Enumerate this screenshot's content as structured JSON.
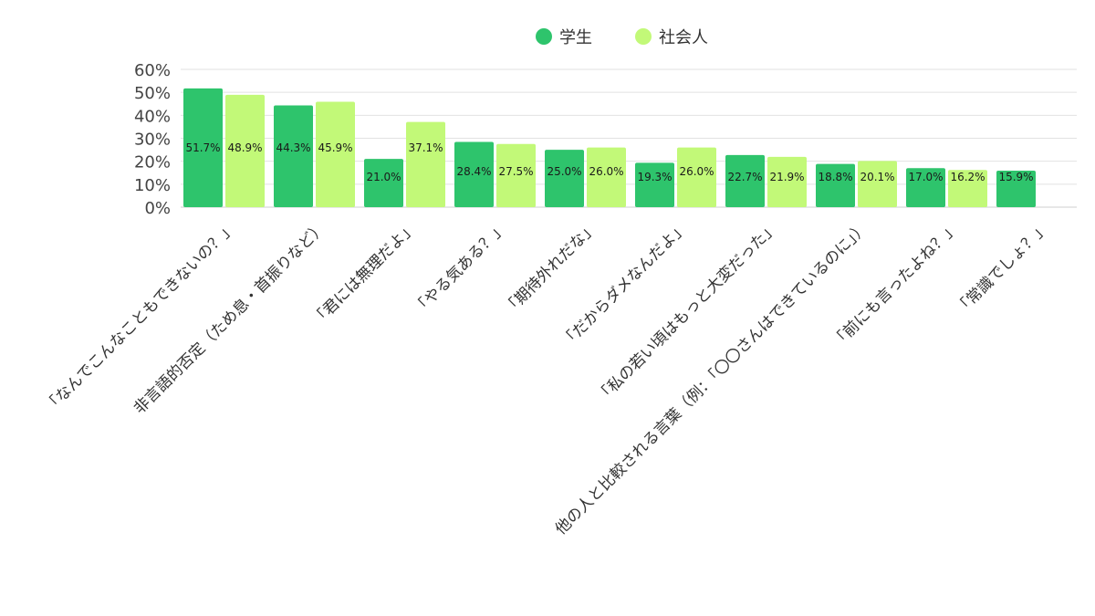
{
  "chart_data": {
    "type": "bar",
    "categories": [
      "「なんでこんなこともできないの？」",
      "非言語的否定（ため息・首振りなど）",
      "「君には無理だよ」",
      "「やる気ある？」",
      "「期待外れだな」",
      "「だからダメなんだよ」",
      "「私の若い頃はもっと大変だった」",
      "他の人と比較される言葉（例：「〇〇さんはできているのに」）",
      "「前にも言ったよね？」",
      "「常識でしょ？」"
    ],
    "series": [
      {
        "name": "学生",
        "color": "#2ec46c",
        "values": [
          51.7,
          44.3,
          21.0,
          28.4,
          25.0,
          19.3,
          22.7,
          18.8,
          17.0,
          15.9
        ],
        "labels": [
          "51.7%",
          "44.3%",
          "21.0%",
          "28.4%",
          "25.0%",
          "19.3%",
          "22.7%",
          "18.8%",
          "17.0%",
          "15.9%"
        ]
      },
      {
        "name": "社会人",
        "color": "#c2f978",
        "values": [
          48.9,
          45.9,
          37.1,
          27.5,
          26.0,
          26.0,
          21.9,
          20.1,
          16.2,
          null
        ],
        "labels": [
          "48.9%",
          "45.9%",
          "37.1%",
          "27.5%",
          "26.0%",
          "26.0%",
          "21.9%",
          "20.1%",
          "16.2%",
          null
        ]
      }
    ],
    "ylim": [
      0,
      60
    ],
    "yticks": [
      "0%",
      "10%",
      "20%",
      "30%",
      "40%",
      "50%",
      "60%"
    ],
    "ytick_values": [
      0,
      10,
      20,
      30,
      40,
      50,
      60
    ],
    "grid": true,
    "legend_position": "top-center",
    "title": "",
    "xlabel": "",
    "ylabel": ""
  }
}
